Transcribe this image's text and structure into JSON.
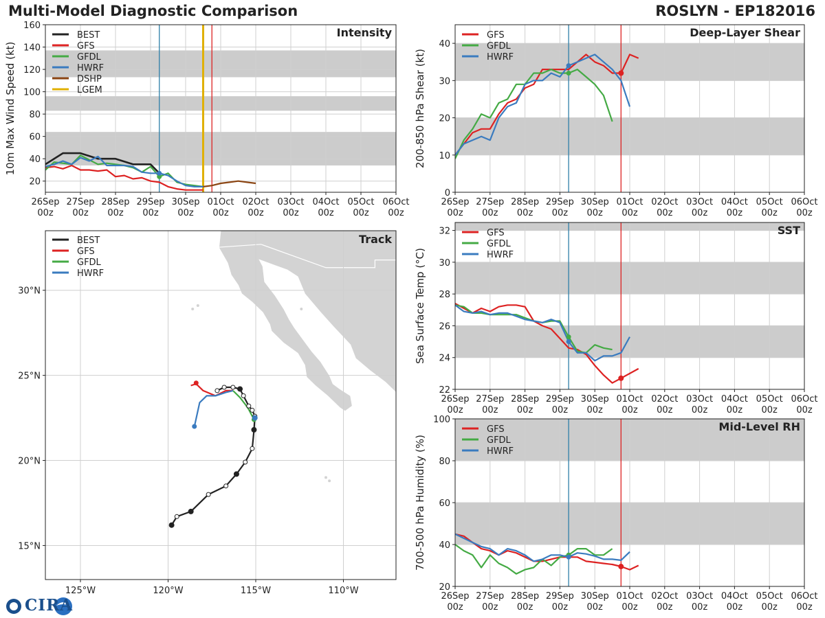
{
  "header": {
    "title": "Multi-Model Diagnostic Comparison",
    "storm": "ROSLYN - EP182016"
  },
  "logo": {
    "text": "CIRA"
  },
  "colors": {
    "BEST": "#222222",
    "GFS": "#dd2222",
    "GFDL": "#44aa44",
    "HWRF": "#3a7bbf",
    "DSHP": "#8b4513",
    "LGEM": "#e0b000",
    "band": "#cccccc",
    "grid": "#cfcfcf",
    "initline": "#2e7fa8",
    "endline": "#dd2222"
  },
  "time_axis": {
    "tick_days": [
      0,
      1,
      2,
      3,
      4,
      5,
      6,
      7,
      8,
      9,
      10
    ],
    "tick_labels_top": [
      "26Sep",
      "27Sep",
      "28Sep",
      "29Sep",
      "30Sep",
      "01Oct",
      "02Oct",
      "03Oct",
      "04Oct",
      "05Oct",
      "06Oct"
    ],
    "tick_labels_bottom": [
      "00z",
      "00z",
      "00z",
      "00z",
      "00z",
      "00z",
      "00z",
      "00z",
      "00z",
      "00z",
      "00z"
    ],
    "init_day": 3.25,
    "gfs_end_day": 4.75
  },
  "chart_data": [
    {
      "id": "intensity",
      "type": "line",
      "title": "Intensity",
      "ylabel": "10m Max Wind Speed (kt)",
      "xlim": [
        0,
        10
      ],
      "ylim": [
        10,
        160
      ],
      "yticks": [
        20,
        40,
        60,
        80,
        100,
        120,
        140,
        160
      ],
      "bands": [
        [
          34,
          64
        ],
        [
          83,
          96
        ],
        [
          113,
          137
        ]
      ],
      "extra_vlines": [
        {
          "x": 4.5,
          "color": "#e0b000"
        }
      ],
      "legend": [
        "BEST",
        "GFS",
        "GFDL",
        "HWRF",
        "DSHP",
        "LGEM"
      ],
      "series": [
        {
          "name": "BEST",
          "x": [
            0,
            0.5,
            1,
            1.5,
            2,
            2.5,
            3,
            3.25
          ],
          "y": [
            35,
            45,
            45,
            40,
            40,
            35,
            35,
            27
          ]
        },
        {
          "name": "GFS",
          "x": [
            0,
            0.25,
            0.5,
            0.75,
            1,
            1.25,
            1.5,
            1.75,
            2,
            2.25,
            2.5,
            2.75,
            3,
            3.25,
            3.5,
            3.75,
            4,
            4.25,
            4.5
          ],
          "y": [
            32,
            33,
            31,
            34,
            30,
            30,
            29,
            30,
            24,
            25,
            22,
            23,
            20,
            19,
            15,
            13,
            12,
            12,
            12
          ]
        },
        {
          "name": "GFDL",
          "x": [
            0,
            0.25,
            0.5,
            0.75,
            1,
            1.25,
            1.5,
            1.75,
            2,
            2.25,
            2.5,
            2.75,
            3,
            3.25,
            3.5,
            3.75,
            4,
            4.25,
            4.5
          ],
          "y": [
            30,
            37,
            36,
            35,
            43,
            39,
            35,
            36,
            35,
            34,
            32,
            28,
            33,
            24,
            27,
            19,
            17,
            16,
            15
          ]
        },
        {
          "name": "HWRF",
          "x": [
            0,
            0.25,
            0.5,
            0.75,
            1,
            1.25,
            1.5,
            1.75,
            2,
            2.25,
            2.5,
            2.75,
            3,
            3.25,
            3.5,
            3.75,
            4,
            4.25,
            4.5
          ],
          "y": [
            33,
            35,
            38,
            35,
            41,
            38,
            42,
            34,
            34,
            34,
            33,
            28,
            27,
            27,
            25,
            20,
            16,
            15,
            15
          ]
        },
        {
          "name": "DSHP",
          "x": [
            4.5,
            4.75,
            5,
            5.25,
            5.5,
            5.75,
            6
          ],
          "y": [
            15,
            16,
            18,
            19,
            20,
            19,
            18
          ]
        },
        {
          "name": "LGEM",
          "x": [
            4.5
          ],
          "y": [
            15
          ]
        }
      ]
    },
    {
      "id": "shear",
      "type": "line",
      "title": "Deep-Layer Shear",
      "ylabel": "200-850 hPa Shear (kt)",
      "xlim": [
        0,
        10
      ],
      "ylim": [
        0,
        45
      ],
      "yticks": [
        0,
        10,
        20,
        30,
        40
      ],
      "bands": [
        [
          10,
          20
        ],
        [
          30,
          40
        ]
      ],
      "legend": [
        "GFS",
        "GFDL",
        "HWRF"
      ],
      "series": [
        {
          "name": "GFS",
          "x": [
            0,
            0.25,
            0.5,
            0.75,
            1,
            1.25,
            1.5,
            1.75,
            2,
            2.25,
            2.5,
            2.75,
            3,
            3.25,
            3.5,
            3.75,
            4,
            4.25,
            4.5,
            4.75,
            5,
            5.25
          ],
          "y": [
            10,
            13,
            16,
            17,
            17,
            21,
            24,
            25,
            28,
            29,
            33,
            33,
            33,
            33,
            35,
            37,
            35,
            34,
            32,
            32,
            37,
            36
          ]
        },
        {
          "name": "GFDL",
          "x": [
            0,
            0.25,
            0.5,
            0.75,
            1,
            1.25,
            1.5,
            1.75,
            2,
            2.25,
            2.5,
            2.75,
            3,
            3.25,
            3.5,
            3.75,
            4,
            4.25,
            4.5
          ],
          "y": [
            9,
            14,
            17,
            21,
            20,
            24,
            25,
            29,
            29,
            32,
            32,
            33,
            32,
            32,
            33,
            31,
            29,
            26,
            19
          ]
        },
        {
          "name": "HWRF",
          "x": [
            0,
            0.25,
            0.5,
            0.75,
            1,
            1.25,
            1.5,
            1.75,
            2,
            2.25,
            2.5,
            2.75,
            3,
            3.25,
            3.5,
            3.75,
            4,
            4.25,
            4.5,
            4.75,
            5
          ],
          "y": [
            10,
            13,
            14,
            15,
            14,
            20,
            23,
            24,
            29,
            30,
            30,
            32,
            31,
            34,
            35,
            36,
            37,
            35,
            33,
            30,
            23
          ]
        }
      ]
    },
    {
      "id": "sst",
      "type": "line",
      "title": "SST",
      "ylabel": "Sea Surface Temp (°C)",
      "xlim": [
        0,
        10
      ],
      "ylim": [
        22,
        32.5
      ],
      "yticks": [
        22,
        24,
        26,
        28,
        30,
        32
      ],
      "bands": [
        [
          24,
          26
        ],
        [
          28,
          30
        ],
        [
          32,
          33
        ]
      ],
      "legend": [
        "GFS",
        "GFDL",
        "HWRF"
      ],
      "series": [
        {
          "name": "GFS",
          "x": [
            0,
            0.25,
            0.5,
            0.75,
            1,
            1.25,
            1.5,
            1.75,
            2,
            2.25,
            2.5,
            2.75,
            3,
            3.25,
            3.5,
            3.75,
            4,
            4.25,
            4.5,
            4.75,
            5,
            5.25
          ],
          "y": [
            27.4,
            27.1,
            26.8,
            27.1,
            26.9,
            27.2,
            27.3,
            27.3,
            27.2,
            26.3,
            26.0,
            25.8,
            25.2,
            24.6,
            24.5,
            24.2,
            23.5,
            22.9,
            22.4,
            22.7,
            23.0,
            23.3
          ]
        },
        {
          "name": "GFDL",
          "x": [
            0,
            0.25,
            0.5,
            0.75,
            1,
            1.25,
            1.5,
            1.75,
            2,
            2.25,
            2.5,
            2.75,
            3,
            3.25,
            3.5,
            3.75,
            4,
            4.25,
            4.5
          ],
          "y": [
            27.3,
            27.2,
            26.8,
            26.8,
            26.7,
            26.7,
            26.7,
            26.7,
            26.5,
            26.3,
            26.2,
            26.3,
            26.3,
            25.3,
            24.4,
            24.3,
            24.8,
            24.6,
            24.5
          ]
        },
        {
          "name": "HWRF",
          "x": [
            0,
            0.25,
            0.5,
            0.75,
            1,
            1.25,
            1.5,
            1.75,
            2,
            2.25,
            2.5,
            2.75,
            3,
            3.25,
            3.5,
            3.75,
            4,
            4.25,
            4.5,
            4.75,
            5
          ],
          "y": [
            27.3,
            26.9,
            26.8,
            26.9,
            26.7,
            26.8,
            26.8,
            26.6,
            26.4,
            26.3,
            26.2,
            26.4,
            26.2,
            25.0,
            24.3,
            24.3,
            23.8,
            24.1,
            24.1,
            24.3,
            25.3
          ]
        }
      ]
    },
    {
      "id": "rh",
      "type": "line",
      "title": "Mid-Level RH",
      "ylabel": "700-500 hPa Humidity (%)",
      "xlim": [
        0,
        10
      ],
      "ylim": [
        20,
        100
      ],
      "yticks": [
        20,
        40,
        60,
        80,
        100
      ],
      "bands": [
        [
          40,
          60
        ],
        [
          80,
          100
        ]
      ],
      "legend": [
        "GFS",
        "GFDL",
        "HWRF"
      ],
      "series": [
        {
          "name": "GFS",
          "x": [
            0,
            0.25,
            0.5,
            0.75,
            1,
            1.25,
            1.5,
            1.75,
            2,
            2.25,
            2.5,
            2.75,
            3,
            3.25,
            3.5,
            3.75,
            4,
            4.25,
            4.5,
            4.75,
            5,
            5.25
          ],
          "y": [
            45,
            44,
            41,
            38,
            37,
            35,
            37,
            36,
            34,
            32,
            32,
            33,
            34,
            34,
            34,
            32,
            31.5,
            31,
            30.5,
            29.5,
            28,
            30
          ]
        },
        {
          "name": "GFDL",
          "x": [
            0,
            0.25,
            0.5,
            0.75,
            1,
            1.25,
            1.5,
            1.75,
            2,
            2.25,
            2.5,
            2.75,
            3,
            3.25,
            3.5,
            3.75,
            4,
            4.25,
            4.5
          ],
          "y": [
            40,
            37,
            35,
            29,
            35,
            31,
            29,
            26,
            28,
            29,
            33,
            30,
            34,
            35,
            38,
            38,
            35,
            35,
            38
          ]
        },
        {
          "name": "HWRF",
          "x": [
            0,
            0.25,
            0.5,
            0.75,
            1,
            1.25,
            1.5,
            1.75,
            2,
            2.25,
            2.5,
            2.75,
            3,
            3.25,
            3.5,
            3.75,
            4,
            4.25,
            4.5,
            4.75,
            5
          ],
          "y": [
            45,
            43,
            41,
            39,
            38,
            35,
            38,
            37,
            35,
            32,
            33,
            35,
            35,
            34,
            36,
            35.5,
            34.5,
            33,
            33,
            32.5,
            36.5
          ]
        }
      ]
    },
    {
      "id": "track",
      "type": "track",
      "title": "Track",
      "xlim": [
        -127,
        -107
      ],
      "ylim": [
        13,
        33.5
      ],
      "xticks": [
        -125,
        -120,
        -115,
        -110
      ],
      "xtick_labels": [
        "125°W",
        "120°W",
        "115°W",
        "110°W"
      ],
      "yticks": [
        15,
        20,
        25,
        30
      ],
      "ytick_labels": [
        "15°N",
        "20°N",
        "25°N",
        "30°N"
      ],
      "legend": [
        "BEST",
        "GFS",
        "GFDL",
        "HWRF"
      ],
      "series": [
        {
          "name": "BEST",
          "lon": [
            -119.8,
            -119.5,
            -118.7,
            -117.7,
            -116.7,
            -116.1,
            -115.6,
            -115.2,
            -115.1,
            -115.05,
            -115.2,
            -115.4,
            -115.7,
            -115.9,
            -116.3,
            -116.8,
            -117.2
          ],
          "lat": [
            16.2,
            16.7,
            17.0,
            18.0,
            18.5,
            19.2,
            19.9,
            20.7,
            21.8,
            22.6,
            22.95,
            23.2,
            23.8,
            24.2,
            24.3,
            24.3,
            24.1
          ],
          "filled": [
            true,
            false,
            true,
            false,
            false,
            true,
            false,
            false,
            true,
            false,
            false,
            false,
            false,
            true,
            false,
            false,
            false
          ]
        },
        {
          "name": "GFS",
          "lon": [
            -116.3,
            -116.7,
            -117.3,
            -118.0,
            -118.4,
            -118.7
          ],
          "lat": [
            24.1,
            24.1,
            23.8,
            24.1,
            24.5,
            24.4
          ],
          "end": [
            -118.4,
            24.55
          ]
        },
        {
          "name": "GFDL",
          "lon": [
            -116.3,
            -115.9,
            -115.6,
            -115.4,
            -115.2,
            -115.1
          ],
          "lat": [
            24.1,
            23.7,
            23.3,
            23.0,
            22.6,
            22.4
          ],
          "end": [
            -115.1,
            22.4
          ]
        },
        {
          "name": "HWRF",
          "lon": [
            -116.3,
            -116.7,
            -117.3,
            -117.8,
            -118.2,
            -118.5
          ],
          "lat": [
            24.1,
            24.0,
            23.8,
            23.8,
            23.4,
            22.0
          ],
          "end": [
            -118.5,
            22.0
          ]
        }
      ],
      "start_marker": {
        "lon": -115.05,
        "lat": 22.5
      }
    }
  ]
}
